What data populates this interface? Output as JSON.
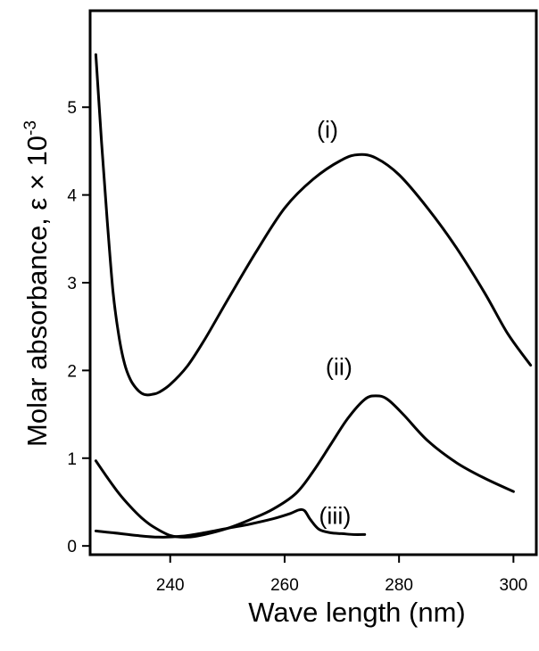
{
  "chart_data": {
    "type": "line",
    "title": "",
    "xlabel": "Wave length (nm)",
    "ylabel_main": "Molar absorbance, ε × 10",
    "ylabel_exp": "-3",
    "xlim": [
      226,
      304
    ],
    "ylim": [
      -0.1,
      6.1
    ],
    "grid": false,
    "legend": "none",
    "x_ticks": [
      240,
      260,
      280,
      300
    ],
    "y_ticks": [
      0,
      1,
      2,
      3,
      4,
      5
    ],
    "series": [
      {
        "name": "(i)",
        "x": [
          227,
          228,
          229,
          230,
          231,
          232,
          233,
          234,
          235,
          236,
          237,
          238,
          240,
          243,
          246,
          250,
          255,
          260,
          265,
          270,
          273,
          276,
          280,
          285,
          290,
          295,
          299,
          303
        ],
        "values": [
          5.6,
          4.6,
          3.7,
          2.9,
          2.4,
          2.08,
          1.9,
          1.8,
          1.74,
          1.72,
          1.73,
          1.75,
          1.84,
          2.05,
          2.35,
          2.8,
          3.35,
          3.85,
          4.18,
          4.4,
          4.46,
          4.42,
          4.23,
          3.85,
          3.4,
          2.88,
          2.42,
          2.06
        ]
      },
      {
        "name": "(ii)",
        "x": [
          227,
          229,
          231,
          233,
          235,
          237,
          240,
          243,
          246,
          250,
          254,
          258,
          262,
          265,
          268,
          271,
          274,
          276,
          278,
          281,
          285,
          290,
          295,
          300
        ],
        "values": [
          0.97,
          0.78,
          0.6,
          0.45,
          0.32,
          0.22,
          0.12,
          0.1,
          0.13,
          0.2,
          0.3,
          0.42,
          0.6,
          0.85,
          1.15,
          1.45,
          1.67,
          1.71,
          1.67,
          1.48,
          1.2,
          0.95,
          0.77,
          0.62
        ]
      },
      {
        "name": "(iii)",
        "x": [
          227,
          230,
          234,
          238,
          242,
          246,
          250,
          254,
          258,
          261,
          262.5,
          263.5,
          264.5,
          266,
          268,
          270,
          272,
          274
        ],
        "values": [
          0.17,
          0.15,
          0.12,
          0.1,
          0.11,
          0.15,
          0.2,
          0.25,
          0.31,
          0.37,
          0.41,
          0.4,
          0.3,
          0.19,
          0.15,
          0.14,
          0.13,
          0.13
        ]
      }
    ],
    "annotations": [
      {
        "text": "(i)",
        "x": 267.5,
        "y": 4.65
      },
      {
        "text": "(ii)",
        "x": 269.5,
        "y": 1.95
      },
      {
        "text": "(iii)",
        "x": 268.8,
        "y": 0.25
      }
    ]
  }
}
